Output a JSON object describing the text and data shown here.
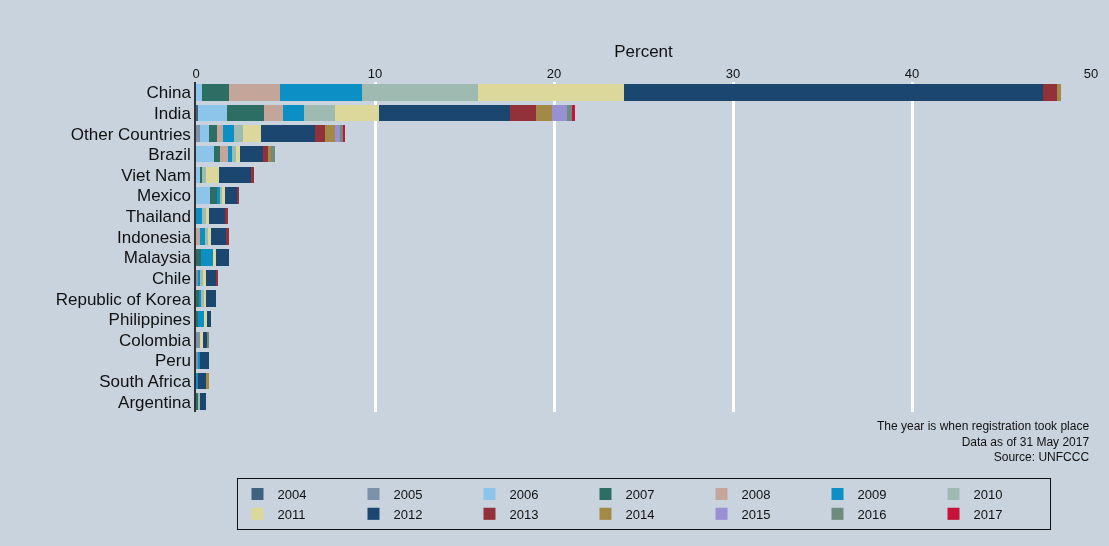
{
  "chart_data": {
    "type": "bar",
    "orientation": "horizontal",
    "stacked": true,
    "xlabel": "Percent",
    "categories": [
      "China",
      "India",
      "Other Countries",
      "Brazil",
      "Viet Nam",
      "Mexico",
      "Thailand",
      "Indonesia",
      "Malaysia",
      "Chile",
      "Republic of Korea",
      "Philippines",
      "Colombia",
      "Peru",
      "South Africa",
      "Argentina"
    ],
    "xlim": [
      0,
      50
    ],
    "xticks": [
      0,
      10,
      20,
      30,
      40,
      50
    ],
    "grid": "x",
    "legend": "bottom",
    "annotations": [
      "The year is when registration took place",
      "Data as of 31 May 2017",
      "Source: UNFCCC"
    ],
    "series": [
      {
        "name": "2004",
        "color": "#3f6280",
        "values": [
          null,
          0.1,
          null,
          null,
          null,
          null,
          null,
          null,
          null,
          null,
          null,
          null,
          null,
          null,
          null,
          null
        ]
      },
      {
        "name": "2005",
        "color": "#7b92aa",
        "values": [
          null,
          null,
          0.25,
          null,
          null,
          null,
          null,
          null,
          null,
          0.1,
          null,
          null,
          0.2,
          0.1,
          null,
          null
        ]
      },
      {
        "name": "2006",
        "color": "#8dc4ea",
        "values": [
          0.35,
          1.65,
          0.5,
          1.0,
          0.2,
          0.8,
          null,
          null,
          null,
          null,
          null,
          null,
          null,
          null,
          null,
          null
        ]
      },
      {
        "name": "2007",
        "color": "#2d6e64",
        "values": [
          1.5,
          2.05,
          0.4,
          0.35,
          0.15,
          0.4,
          null,
          null,
          0.3,
          null,
          0.15,
          0.1,
          null,
          null,
          null,
          0.1
        ]
      },
      {
        "name": "2008",
        "color": "#c4a59a",
        "values": [
          2.85,
          1.05,
          0.35,
          0.45,
          null,
          null,
          null,
          0.2,
          null,
          null,
          null,
          null,
          null,
          null,
          null,
          null
        ]
      },
      {
        "name": "2009",
        "color": "#0c8fc4",
        "values": [
          4.55,
          1.2,
          0.6,
          0.2,
          null,
          0.15,
          0.35,
          0.3,
          0.65,
          0.15,
          0.15,
          0.35,
          null,
          0.15,
          0.1,
          null
        ]
      },
      {
        "name": "2010",
        "color": "#9fbbb1",
        "values": [
          6.5,
          1.7,
          0.5,
          0.25,
          0.2,
          0.1,
          0.2,
          0.15,
          null,
          0.15,
          0.15,
          null,
          null,
          null,
          null,
          0.15
        ]
      },
      {
        "name": "2011",
        "color": "#dcd89b",
        "values": [
          8.15,
          2.45,
          1.05,
          0.2,
          0.75,
          0.15,
          0.2,
          0.2,
          0.15,
          0.15,
          0.1,
          0.15,
          0.2,
          null,
          null,
          null
        ]
      },
      {
        "name": "2012",
        "color": "#1b4670",
        "values": [
          23.4,
          7.35,
          3.0,
          1.3,
          1.8,
          0.7,
          0.85,
          0.85,
          0.75,
          0.6,
          0.55,
          0.25,
          0.2,
          0.45,
          0.5,
          0.3
        ]
      },
      {
        "name": "2013",
        "color": "#923139",
        "values": [
          0.8,
          1.45,
          0.55,
          0.3,
          0.15,
          0.1,
          0.2,
          0.15,
          null,
          0.05,
          null,
          null,
          null,
          null,
          null,
          null
        ]
      },
      {
        "name": "2014",
        "color": "#a28a46",
        "values": [
          0.25,
          0.9,
          0.55,
          0.15,
          null,
          null,
          null,
          null,
          null,
          null,
          null,
          null,
          null,
          null,
          0.1,
          null
        ]
      },
      {
        "name": "2015",
        "color": "#9890d2",
        "values": [
          null,
          0.8,
          0.3,
          null,
          null,
          null,
          null,
          null,
          null,
          null,
          null,
          null,
          null,
          null,
          null,
          null
        ]
      },
      {
        "name": "2016",
        "color": "#6e8b7d",
        "values": [
          null,
          0.3,
          0.2,
          0.2,
          null,
          null,
          null,
          null,
          null,
          null,
          null,
          null,
          0.15,
          null,
          null,
          null
        ]
      },
      {
        "name": "2017",
        "color": "#c7133a",
        "values": [
          null,
          0.15,
          0.1,
          null,
          null,
          null,
          null,
          null,
          null,
          null,
          null,
          null,
          null,
          null,
          null,
          null
        ]
      }
    ]
  }
}
